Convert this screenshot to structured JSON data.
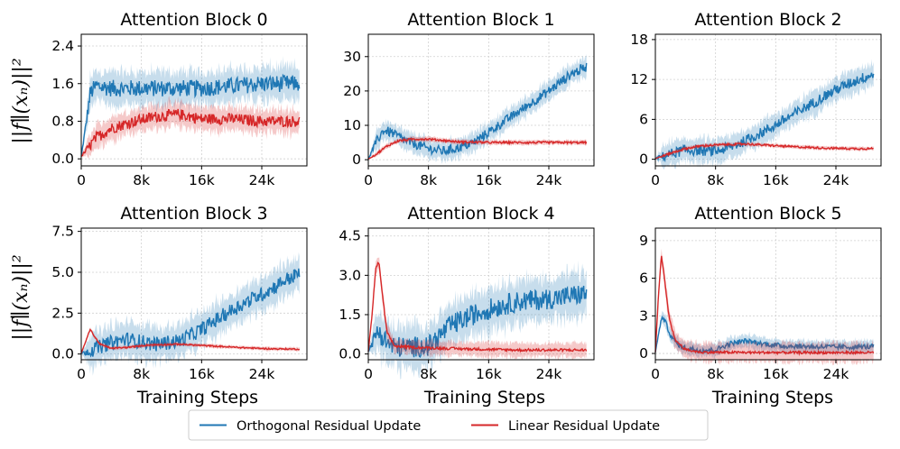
{
  "ylabel": "||f∥(xₙ)||²",
  "xlabel": "Training Steps",
  "legend": [
    {
      "label": "Orthogonal Residual Update",
      "color": "#1f77b4"
    },
    {
      "label": "Linear Residual Update",
      "color": "#d62728"
    }
  ],
  "chart_data": [
    {
      "type": "line",
      "title": "Attention Block 0",
      "xlim": [
        0,
        30000
      ],
      "x_ticks": [
        0,
        8000,
        16000,
        24000
      ],
      "x_tick_labels": [
        "0",
        "8k",
        "16k",
        "24k"
      ],
      "ylim": [
        -0.15,
        2.65
      ],
      "y_ticks": [
        0.0,
        0.8,
        1.6,
        2.4
      ],
      "y_tick_labels": [
        "0.0",
        "0.8",
        "1.6",
        "2.4"
      ],
      "grid": true,
      "series": [
        {
          "name": "Orthogonal Residual Update",
          "color": "#1f77b4",
          "noise": 0.18,
          "band": 0.3,
          "points": [
            [
              0,
              0.05
            ],
            [
              600,
              0.7
            ],
            [
              1200,
              1.4
            ],
            [
              2000,
              1.55
            ],
            [
              4000,
              1.5
            ],
            [
              8000,
              1.5
            ],
            [
              16000,
              1.5
            ],
            [
              24000,
              1.6
            ],
            [
              29000,
              1.6
            ]
          ]
        },
        {
          "name": "Linear Residual Update",
          "color": "#d62728",
          "noise": 0.12,
          "band": 0.22,
          "points": [
            [
              0,
              0.05
            ],
            [
              1000,
              0.25
            ],
            [
              2000,
              0.45
            ],
            [
              4000,
              0.65
            ],
            [
              7000,
              0.8
            ],
            [
              10000,
              0.9
            ],
            [
              13000,
              0.95
            ],
            [
              16000,
              0.85
            ],
            [
              20000,
              0.85
            ],
            [
              24000,
              0.8
            ],
            [
              29000,
              0.8
            ]
          ]
        }
      ]
    },
    {
      "type": "line",
      "title": "Attention Block 1",
      "xlim": [
        0,
        30000
      ],
      "x_ticks": [
        0,
        8000,
        16000,
        24000
      ],
      "x_tick_labels": [
        "0",
        "8k",
        "16k",
        "24k"
      ],
      "ylim": [
        -1.8,
        36.5
      ],
      "y_ticks": [
        0,
        10,
        20,
        30
      ],
      "y_tick_labels": [
        "0",
        "10",
        "20",
        "30"
      ],
      "grid": true,
      "series": [
        {
          "name": "Orthogonal Residual Update",
          "color": "#1f77b4",
          "noise": 1.4,
          "band": 2.4,
          "points": [
            [
              0,
              0.2
            ],
            [
              1000,
              5
            ],
            [
              2000,
              8.5
            ],
            [
              3000,
              8
            ],
            [
              5000,
              5.5
            ],
            [
              8000,
              3.2
            ],
            [
              10000,
              2.5
            ],
            [
              12000,
              3.5
            ],
            [
              14000,
              5
            ],
            [
              16000,
              8
            ],
            [
              20000,
              14
            ],
            [
              24000,
              20
            ],
            [
              27000,
              25
            ],
            [
              29000,
              27
            ]
          ]
        },
        {
          "name": "Linear Residual Update",
          "color": "#d62728",
          "noise": 0.3,
          "band": 0.6,
          "points": [
            [
              0,
              0.2
            ],
            [
              1000,
              1.5
            ],
            [
              2500,
              4
            ],
            [
              4000,
              5.5
            ],
            [
              6000,
              6
            ],
            [
              8000,
              6
            ],
            [
              12000,
              5.2
            ],
            [
              16000,
              5
            ],
            [
              24000,
              5
            ],
            [
              29000,
              5
            ]
          ]
        }
      ]
    },
    {
      "type": "line",
      "title": "Attention Block 2",
      "xlim": [
        0,
        30000
      ],
      "x_ticks": [
        0,
        8000,
        16000,
        24000
      ],
      "x_tick_labels": [
        "0",
        "8k",
        "16k",
        "24k"
      ],
      "ylim": [
        -1.0,
        18.8
      ],
      "y_ticks": [
        0,
        6,
        12,
        18
      ],
      "y_tick_labels": [
        "0",
        "6",
        "12",
        "18"
      ],
      "grid": true,
      "series": [
        {
          "name": "Orthogonal Residual Update",
          "color": "#1f77b4",
          "noise": 0.8,
          "band": 1.5,
          "points": [
            [
              0,
              0.1
            ],
            [
              2000,
              0.8
            ],
            [
              4000,
              1.4
            ],
            [
              6000,
              1.3
            ],
            [
              8000,
              1.2
            ],
            [
              10000,
              1.8
            ],
            [
              12000,
              2.8
            ],
            [
              15000,
              4.5
            ],
            [
              18000,
              6.5
            ],
            [
              21000,
              8.5
            ],
            [
              24000,
              10.5
            ],
            [
              27000,
              12
            ],
            [
              29000,
              12.8
            ]
          ]
        },
        {
          "name": "Linear Residual Update",
          "color": "#d62728",
          "noise": 0.15,
          "band": 0.25,
          "points": [
            [
              0,
              0.1
            ],
            [
              2000,
              0.9
            ],
            [
              4000,
              1.6
            ],
            [
              6000,
              2
            ],
            [
              9000,
              2.2
            ],
            [
              12000,
              2.3
            ],
            [
              15000,
              2.1
            ],
            [
              18000,
              1.9
            ],
            [
              22000,
              1.7
            ],
            [
              26000,
              1.6
            ],
            [
              29000,
              1.6
            ]
          ]
        }
      ]
    },
    {
      "type": "line",
      "title": "Attention Block 3",
      "xlim": [
        0,
        30000
      ],
      "x_ticks": [
        0,
        8000,
        16000,
        24000
      ],
      "x_tick_labels": [
        "0",
        "8k",
        "16k",
        "24k"
      ],
      "ylim": [
        -0.35,
        7.7
      ],
      "y_ticks": [
        0.0,
        2.5,
        5.0,
        7.5
      ],
      "y_tick_labels": [
        "0.0",
        "2.5",
        "5.0",
        "7.5"
      ],
      "grid": true,
      "series": [
        {
          "name": "Orthogonal Residual Update",
          "color": "#1f77b4",
          "noise": 0.45,
          "band": 0.9,
          "points": [
            [
              0,
              0.05
            ],
            [
              2000,
              0.35
            ],
            [
              4000,
              0.7
            ],
            [
              6000,
              0.9
            ],
            [
              8000,
              0.75
            ],
            [
              10000,
              0.6
            ],
            [
              13000,
              0.8
            ],
            [
              16000,
              1.5
            ],
            [
              19000,
              2.4
            ],
            [
              22000,
              3.2
            ],
            [
              25000,
              3.9
            ],
            [
              27000,
              4.5
            ],
            [
              29000,
              4.9
            ]
          ]
        },
        {
          "name": "Linear Residual Update",
          "color": "#d62728",
          "noise": 0.04,
          "band": 0.1,
          "points": [
            [
              0,
              0.05
            ],
            [
              700,
              0.9
            ],
            [
              1200,
              1.55
            ],
            [
              1700,
              1.1
            ],
            [
              2500,
              0.6
            ],
            [
              4000,
              0.35
            ],
            [
              6000,
              0.4
            ],
            [
              9000,
              0.55
            ],
            [
              13000,
              0.6
            ],
            [
              17000,
              0.5
            ],
            [
              21000,
              0.4
            ],
            [
              25000,
              0.32
            ],
            [
              29000,
              0.3
            ]
          ]
        }
      ]
    },
    {
      "type": "line",
      "title": "Attention Block 4",
      "xlim": [
        0,
        30000
      ],
      "x_ticks": [
        0,
        8000,
        16000,
        24000
      ],
      "x_tick_labels": [
        "0",
        "8k",
        "16k",
        "24k"
      ],
      "ylim": [
        -0.22,
        4.8
      ],
      "y_ticks": [
        0.0,
        1.5,
        3.0,
        4.5
      ],
      "y_tick_labels": [
        "0.0",
        "1.5",
        "3.0",
        "4.5"
      ],
      "grid": true,
      "series": [
        {
          "name": "Orthogonal Residual Update",
          "color": "#1f77b4",
          "noise": 0.4,
          "band": 0.7,
          "points": [
            [
              0,
              0.1
            ],
            [
              800,
              0.6
            ],
            [
              1300,
              0.9
            ],
            [
              2000,
              0.6
            ],
            [
              3000,
              0.3
            ],
            [
              5000,
              0.25
            ],
            [
              8000,
              0.3
            ],
            [
              9500,
              0.7
            ],
            [
              11000,
              1.1
            ],
            [
              14000,
              1.5
            ],
            [
              17000,
              1.8
            ],
            [
              20000,
              2.0
            ],
            [
              24000,
              2.1
            ],
            [
              29000,
              2.3
            ]
          ]
        },
        {
          "name": "Linear Residual Update",
          "color": "#d62728",
          "noise": 0.05,
          "band": 0.25,
          "points": [
            [
              0,
              0.1
            ],
            [
              500,
              1.5
            ],
            [
              1000,
              3.3
            ],
            [
              1400,
              3.5
            ],
            [
              1900,
              2.2
            ],
            [
              2500,
              0.8
            ],
            [
              3500,
              0.3
            ],
            [
              6000,
              0.25
            ],
            [
              12000,
              0.2
            ],
            [
              20000,
              0.15
            ],
            [
              29000,
              0.15
            ]
          ]
        }
      ]
    },
    {
      "type": "line",
      "title": "Attention Block 5",
      "xlim": [
        0,
        30000
      ],
      "x_ticks": [
        0,
        8000,
        16000,
        24000
      ],
      "x_tick_labels": [
        "0",
        "8k",
        "16k",
        "24k"
      ],
      "ylim": [
        -0.5,
        10.0
      ],
      "y_ticks": [
        0,
        3,
        6,
        9
      ],
      "y_tick_labels": [
        "0",
        "3",
        "6",
        "9"
      ],
      "grid": true,
      "series": [
        {
          "name": "Orthogonal Residual Update",
          "color": "#1f77b4",
          "noise": 0.2,
          "band": 0.45,
          "points": [
            [
              0,
              0.1
            ],
            [
              500,
              1.8
            ],
            [
              900,
              3.0
            ],
            [
              1400,
              2.4
            ],
            [
              2200,
              1.2
            ],
            [
              3500,
              0.5
            ],
            [
              6000,
              0.25
            ],
            [
              8000,
              0.3
            ],
            [
              10000,
              0.8
            ],
            [
              12000,
              1.0
            ],
            [
              14000,
              0.8
            ],
            [
              17000,
              0.6
            ],
            [
              21000,
              0.55
            ],
            [
              25000,
              0.5
            ],
            [
              29000,
              0.55
            ]
          ]
        },
        {
          "name": "Linear Residual Update",
          "color": "#d62728",
          "noise": 0.1,
          "band": 0.7,
          "points": [
            [
              0,
              0.1
            ],
            [
              400,
              4.5
            ],
            [
              800,
              7.8
            ],
            [
              1200,
              6.0
            ],
            [
              1800,
              3.0
            ],
            [
              2600,
              1.1
            ],
            [
              4000,
              0.3
            ],
            [
              6000,
              0.1
            ],
            [
              12000,
              0.08
            ],
            [
              20000,
              0.07
            ],
            [
              29000,
              0.07
            ]
          ]
        }
      ]
    }
  ]
}
